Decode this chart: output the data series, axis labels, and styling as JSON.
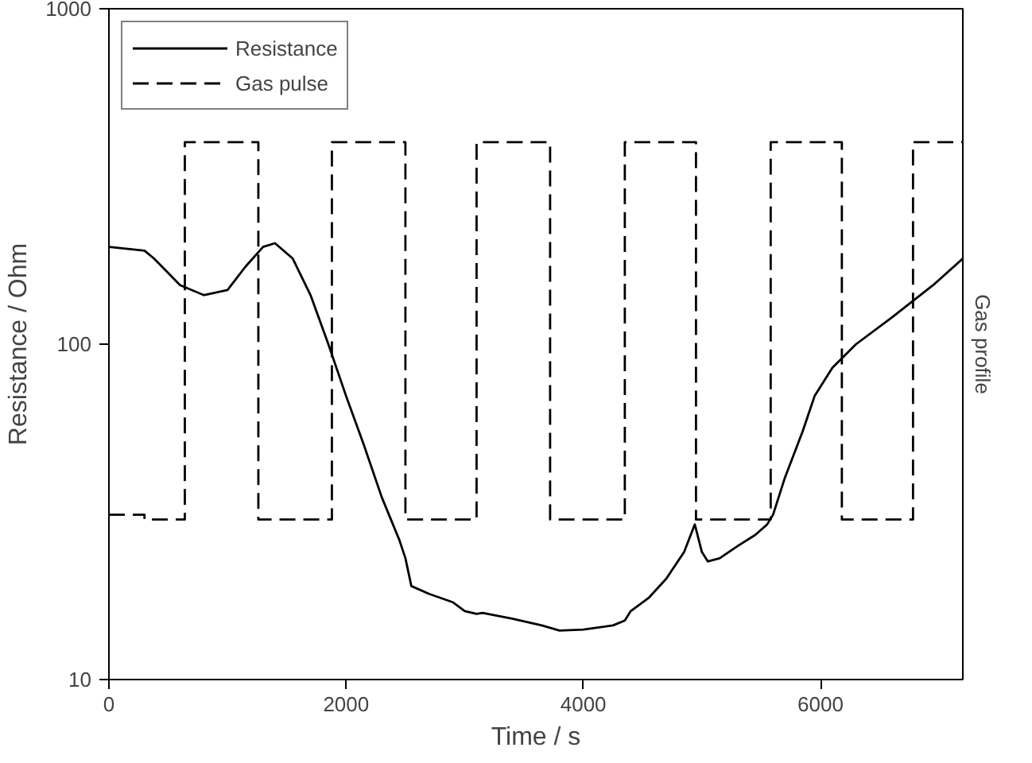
{
  "chart_data": {
    "type": "line",
    "xlabel": "Time / s",
    "ylabel": "Resistance / Ohm",
    "y2label": "Gas profile",
    "xlim": [
      0,
      7200
    ],
    "xticks": [
      0,
      2000,
      4000,
      6000
    ],
    "ylim": [
      10,
      1000
    ],
    "yticks": [
      10,
      100,
      1000
    ],
    "log": "y",
    "grid": false,
    "legend": "top left",
    "marker": "none",
    "series": [
      {
        "name": "Resistance",
        "color": "#000000",
        "line_style": "solid",
        "x": [
          0,
          300,
          380,
          600,
          800,
          1000,
          1150,
          1300,
          1400,
          1550,
          1700,
          1850,
          2000,
          2150,
          2300,
          2450,
          2500,
          2550,
          2700,
          2900,
          3000,
          3100,
          3150,
          3400,
          3650,
          3800,
          4000,
          4250,
          4350,
          4400,
          4550,
          4700,
          4850,
          4940,
          5000,
          5050,
          5150,
          5300,
          5450,
          5550,
          5600,
          5700,
          5850,
          5950,
          6100,
          6300,
          6600,
          6950,
          7200
        ],
        "values": [
          195,
          190,
          180,
          150,
          140,
          145,
          170,
          195,
          200,
          180,
          140,
          100,
          70,
          50,
          35,
          26,
          23,
          19,
          18,
          17,
          16,
          15.7,
          15.8,
          15.2,
          14.5,
          14,
          14.1,
          14.5,
          15,
          16,
          17.5,
          20,
          24,
          29,
          24,
          22.5,
          23,
          25,
          27,
          29,
          31,
          40,
          55,
          70,
          85,
          100,
          120,
          150,
          180
        ]
      },
      {
        "name": "Gas pulse",
        "color": "#000000",
        "line_style": "dashed",
        "x": [
          0,
          300,
          300,
          640,
          640,
          1260,
          1260,
          1880,
          1880,
          2500,
          2500,
          3100,
          3100,
          3720,
          3720,
          4350,
          4350,
          4950,
          4950,
          5580,
          5580,
          6180,
          6180,
          6780,
          6780,
          7200
        ],
        "values": [
          31,
          31,
          30,
          30,
          400,
          400,
          30,
          30,
          400,
          400,
          30,
          30,
          400,
          400,
          30,
          30,
          400,
          400,
          30,
          30,
          400,
          400,
          30,
          30,
          400,
          400
        ]
      }
    ]
  }
}
